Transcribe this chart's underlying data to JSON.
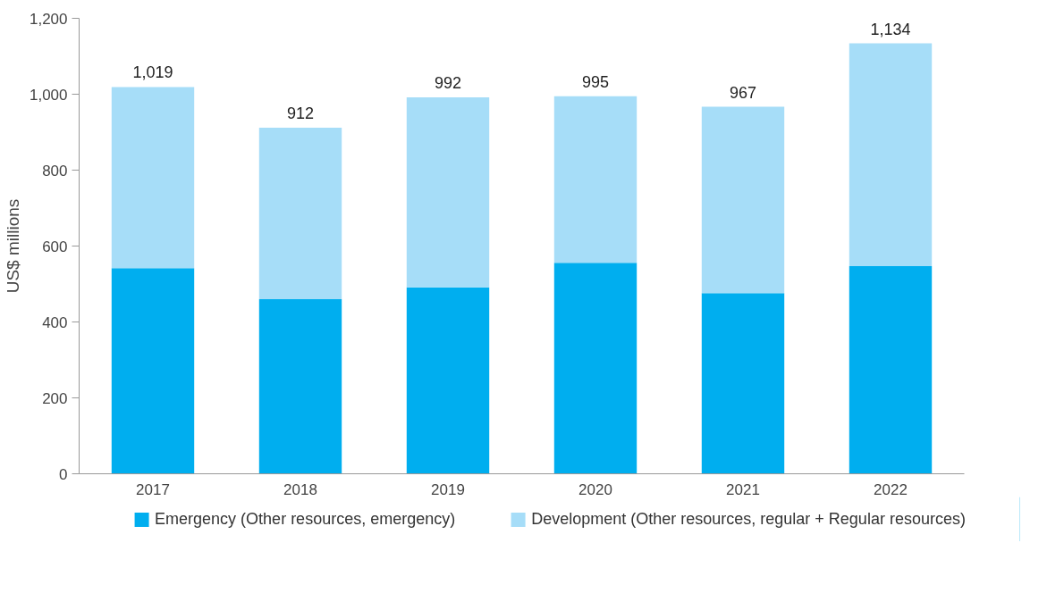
{
  "chart_data": {
    "type": "bar",
    "stacked": true,
    "ylabel": "US$ millions",
    "categories": [
      "2017",
      "2018",
      "2019",
      "2020",
      "2021",
      "2022"
    ],
    "series": [
      {
        "name": "Emergency (Other resources, emergency)",
        "color": "#00aeef",
        "values": [
          542,
          460,
          491,
          556,
          476,
          547
        ]
      },
      {
        "name": "Development (Other resources, regular + Regular resources)",
        "color": "#a6ddf8",
        "values": [
          477,
          452,
          501,
          439,
          491,
          587
        ]
      }
    ],
    "totals": [
      "1,019",
      "912",
      "992",
      "995",
      "967",
      "1,134"
    ],
    "ylim": [
      0,
      1200
    ],
    "yticks": [
      {
        "value": 0,
        "label": "0"
      },
      {
        "value": 200,
        "label": "200"
      },
      {
        "value": 400,
        "label": "400"
      },
      {
        "value": 600,
        "label": "600"
      },
      {
        "value": 800,
        "label": "800"
      },
      {
        "value": 1000,
        "label": "1,000"
      },
      {
        "value": 1200,
        "label": "1,200"
      }
    ],
    "grid": false,
    "legend": "bottom"
  }
}
